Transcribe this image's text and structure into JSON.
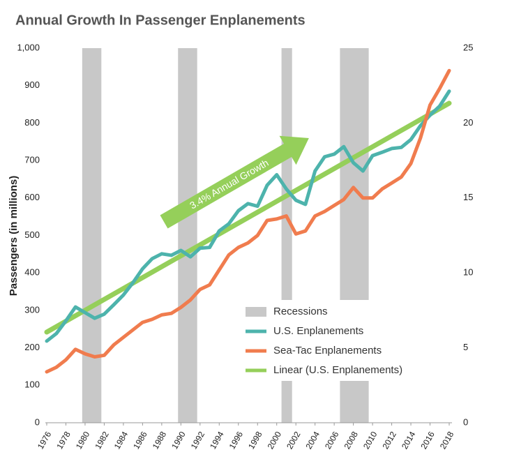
{
  "chart_data": {
    "type": "line",
    "title": "Annual Growth In Passenger Enplanements",
    "ylabel": "Passengers (in millions)",
    "annotation": "3.4% Annual Growth",
    "x": [
      1976,
      1977,
      1978,
      1979,
      1980,
      1981,
      1982,
      1983,
      1984,
      1985,
      1986,
      1987,
      1988,
      1989,
      1990,
      1991,
      1992,
      1993,
      1994,
      1995,
      1996,
      1997,
      1998,
      1999,
      2000,
      2001,
      2002,
      2003,
      2004,
      2005,
      2006,
      2007,
      2008,
      2009,
      2010,
      2011,
      2012,
      2013,
      2014,
      2015,
      2016,
      2017,
      2018
    ],
    "xlim": [
      1976,
      2018
    ],
    "xticks": [
      1976,
      1978,
      1980,
      1982,
      1984,
      1986,
      1988,
      1990,
      1992,
      1994,
      1996,
      1998,
      2000,
      2002,
      2004,
      2006,
      2008,
      2010,
      2012,
      2014,
      2016,
      2018
    ],
    "ylim": [
      0,
      1000
    ],
    "yticks": [
      0,
      100,
      200,
      300,
      400,
      500,
      600,
      700,
      800,
      900,
      {
        "value": 1000,
        "label": "1,000"
      }
    ],
    "y2lim": [
      0,
      25
    ],
    "y2ticks": [
      0,
      5,
      10,
      15,
      20,
      25
    ],
    "recessions": {
      "name": "Recessions",
      "color": "#c8c8c8",
      "periods": [
        [
          1979.7,
          1981.7
        ],
        [
          1989.7,
          1991.7
        ],
        [
          2000.5,
          2001.6
        ],
        [
          2006.6,
          2009.6
        ]
      ]
    },
    "series": [
      {
        "name": "U.S. Enplanements",
        "color": "#4db3ac",
        "values": [
          218,
          238,
          272,
          309,
          294,
          279,
          290,
          315,
          341,
          374,
          411,
          438,
          451,
          447,
          460,
          443,
          466,
          468,
          512,
          531,
          566,
          585,
          578,
          634,
          662,
          624,
          594,
          583,
          672,
          710,
          717,
          737,
          694,
          672,
          713,
          722,
          732,
          735,
          756,
          793,
          821,
          845,
          885
        ]
      },
      {
        "name": "Sea-Tac Enplanements",
        "color": "#f07c4e",
        "axis": "y2",
        "values": [
          3.4,
          3.7,
          4.2,
          4.9,
          4.6,
          4.4,
          4.5,
          5.2,
          5.7,
          6.2,
          6.7,
          6.9,
          7.2,
          7.3,
          7.7,
          8.2,
          8.9,
          9.2,
          10.2,
          11.2,
          11.7,
          12.0,
          12.5,
          13.5,
          13.6,
          13.8,
          12.6,
          12.8,
          13.8,
          14.1,
          14.5,
          14.9,
          15.7,
          15.0,
          15.0,
          15.6,
          16.0,
          16.4,
          17.3,
          19.0,
          21.2,
          22.3,
          23.5
        ]
      }
    ],
    "trend": {
      "name": "Linear (U.S. Enplanements)",
      "color": "#95cf5a",
      "x": [
        1976,
        2018
      ],
      "values": [
        242,
        853
      ]
    }
  }
}
